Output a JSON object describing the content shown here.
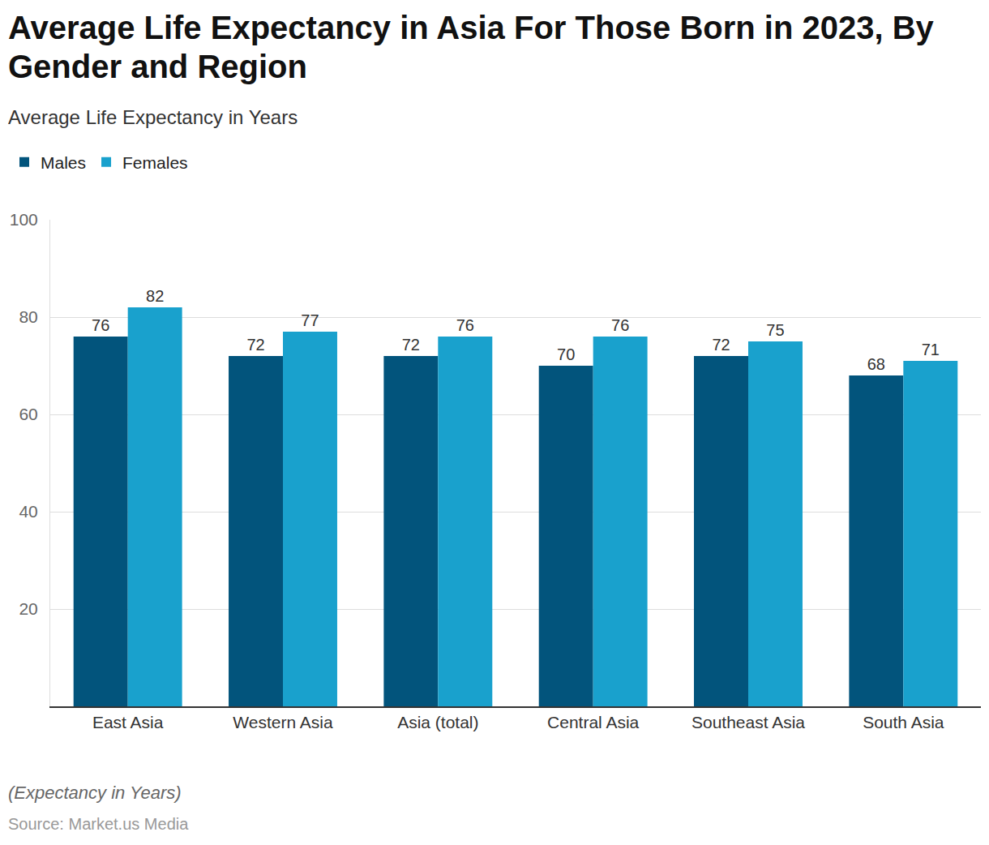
{
  "chart_data": {
    "type": "bar",
    "title": "Average Life Expectancy in Asia For Those Born in 2023, By Gender and Region",
    "subtitle": "Average Life Expectancy in Years",
    "annotations": [
      "(Expectancy in Years)",
      "Source: Market.us Media"
    ],
    "categories": [
      "East Asia",
      "Western Asia",
      "Asia (total)",
      "Central Asia",
      "Southeast Asia",
      "South Asia"
    ],
    "series": [
      {
        "name": "Males",
        "color": "#02547c",
        "values": [
          76,
          72,
          72,
          70,
          72,
          68
        ]
      },
      {
        "name": "Females",
        "color": "#19a1cd",
        "values": [
          82,
          77,
          76,
          76,
          75,
          71
        ]
      }
    ],
    "ylim": [
      0,
      100
    ],
    "yticks": [
      20,
      40,
      60,
      80,
      100
    ],
    "grid": true,
    "legend": "top-left",
    "data_labels": true
  }
}
